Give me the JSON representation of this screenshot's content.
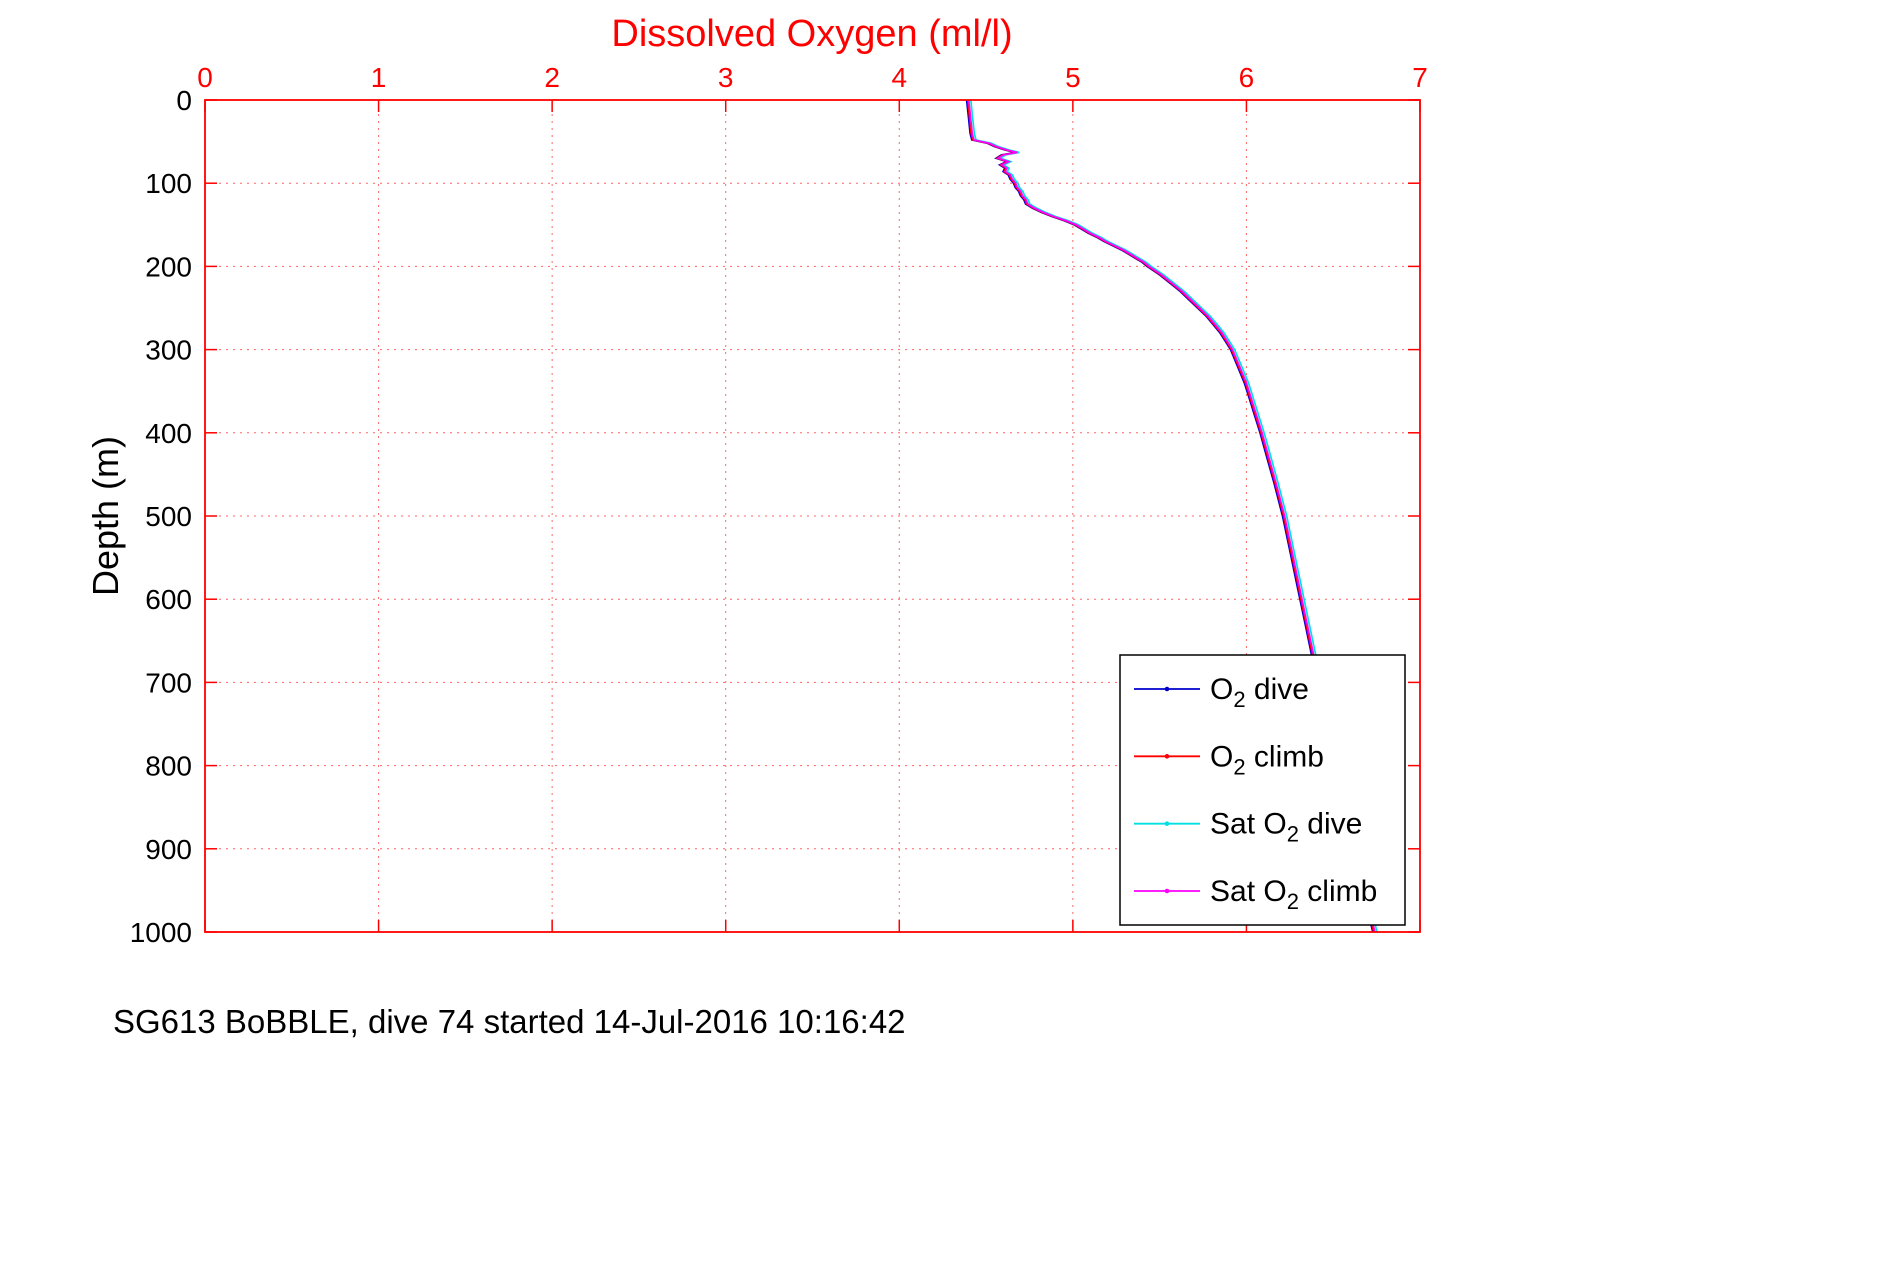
{
  "title": "Dissolved Oxygen (ml/l)",
  "ylabel": "Depth (m)",
  "caption": "SG613 BoBBLE, dive 74 started 14-Jul-2016 10:16:42",
  "colors": {
    "axis": "#ff0000",
    "grid": "#ff6666",
    "title": "#ff0000",
    "x_tick_label": "#ff0000",
    "y_tick_label": "#000000",
    "caption": "#000000",
    "legend_border": "#000000",
    "legend_background": "#ffffff"
  },
  "chart_data": {
    "type": "line",
    "title": "Dissolved Oxygen (ml/l)",
    "xlabel": "Dissolved Oxygen (ml/l)",
    "ylabel": "Depth (m)",
    "xlim": [
      0,
      7
    ],
    "ylim": [
      0,
      1000
    ],
    "x_ticks": [
      0,
      1,
      2,
      3,
      4,
      5,
      6,
      7
    ],
    "y_ticks": [
      0,
      100,
      200,
      300,
      400,
      500,
      600,
      700,
      800,
      900,
      1000
    ],
    "y_axis_inverted": true,
    "x_axis_location": "top",
    "grid": "dotted",
    "depth_m": [
      0,
      20,
      40,
      48,
      52,
      56,
      60,
      63,
      66,
      70,
      74,
      78,
      82,
      86,
      90,
      95,
      100,
      105,
      110,
      115,
      120,
      125,
      130,
      135,
      140,
      145,
      150,
      155,
      160,
      165,
      170,
      175,
      180,
      185,
      190,
      195,
      200,
      210,
      220,
      230,
      240,
      250,
      260,
      270,
      280,
      290,
      300,
      320,
      340,
      360,
      380,
      400,
      430,
      460,
      500,
      540,
      580,
      620,
      660,
      700,
      750,
      800,
      850,
      900,
      950,
      1000
    ],
    "series": [
      {
        "name": "O2 dive",
        "color": "#0000cd",
        "oxygen_ml_l": [
          4.388,
          4.398,
          4.408,
          4.418,
          4.508,
          4.548,
          4.608,
          4.668,
          4.588,
          4.558,
          4.618,
          4.578,
          4.608,
          4.598,
          4.628,
          4.638,
          4.658,
          4.668,
          4.688,
          4.698,
          4.718,
          4.728,
          4.768,
          4.818,
          4.878,
          4.948,
          5.008,
          5.048,
          5.088,
          5.138,
          5.178,
          5.228,
          5.278,
          5.318,
          5.358,
          5.398,
          5.428,
          5.498,
          5.558,
          5.618,
          5.668,
          5.718,
          5.768,
          5.808,
          5.848,
          5.878,
          5.908,
          5.948,
          5.988,
          6.018,
          6.048,
          6.078,
          6.118,
          6.158,
          6.208,
          6.248,
          6.288,
          6.328,
          6.368,
          6.408,
          6.458,
          6.508,
          6.558,
          6.608,
          6.668,
          6.728
        ]
      },
      {
        "name": "O2 climb",
        "color": "#ff0000",
        "oxygen_ml_l": [
          4.394,
          4.404,
          4.414,
          4.424,
          4.514,
          4.554,
          4.614,
          4.674,
          4.594,
          4.564,
          4.624,
          4.584,
          4.614,
          4.604,
          4.634,
          4.644,
          4.664,
          4.674,
          4.694,
          4.704,
          4.724,
          4.734,
          4.774,
          4.824,
          4.884,
          4.954,
          5.014,
          5.054,
          5.094,
          5.144,
          5.184,
          5.234,
          5.284,
          5.324,
          5.364,
          5.404,
          5.434,
          5.504,
          5.564,
          5.624,
          5.674,
          5.724,
          5.774,
          5.814,
          5.854,
          5.884,
          5.914,
          5.954,
          5.994,
          6.024,
          6.054,
          6.084,
          6.124,
          6.164,
          6.214,
          6.254,
          6.294,
          6.334,
          6.374,
          6.414,
          6.464,
          6.514,
          6.564,
          6.614,
          6.674,
          6.734
        ]
      },
      {
        "name": "Sat O2 dive",
        "color": "#00e0e0",
        "oxygen_ml_l": [
          4.412,
          4.422,
          4.432,
          4.442,
          4.532,
          4.572,
          4.632,
          4.692,
          4.612,
          4.582,
          4.642,
          4.602,
          4.632,
          4.622,
          4.652,
          4.662,
          4.682,
          4.692,
          4.712,
          4.722,
          4.742,
          4.752,
          4.792,
          4.842,
          4.902,
          4.972,
          5.032,
          5.072,
          5.112,
          5.162,
          5.202,
          5.252,
          5.302,
          5.342,
          5.382,
          5.422,
          5.452,
          5.522,
          5.582,
          5.642,
          5.692,
          5.742,
          5.792,
          5.832,
          5.872,
          5.902,
          5.932,
          5.972,
          6.012,
          6.042,
          6.072,
          6.102,
          6.142,
          6.182,
          6.232,
          6.272,
          6.312,
          6.352,
          6.392,
          6.432,
          6.482,
          6.532,
          6.582,
          6.632,
          6.692,
          6.752
        ]
      },
      {
        "name": "Sat O2 climb",
        "color": "#ff00ff",
        "oxygen_ml_l": [
          4.4,
          4.41,
          4.42,
          4.43,
          4.52,
          4.56,
          4.62,
          4.68,
          4.6,
          4.57,
          4.63,
          4.59,
          4.62,
          4.61,
          4.64,
          4.65,
          4.67,
          4.68,
          4.7,
          4.71,
          4.73,
          4.74,
          4.78,
          4.83,
          4.89,
          4.96,
          5.02,
          5.06,
          5.1,
          5.15,
          5.19,
          5.24,
          5.29,
          5.33,
          5.37,
          5.41,
          5.44,
          5.51,
          5.57,
          5.63,
          5.68,
          5.73,
          5.78,
          5.82,
          5.86,
          5.89,
          5.92,
          5.96,
          6.0,
          6.03,
          6.06,
          6.09,
          6.13,
          6.17,
          6.22,
          6.26,
          6.3,
          6.34,
          6.38,
          6.42,
          6.47,
          6.52,
          6.57,
          6.62,
          6.68,
          6.74
        ]
      }
    ],
    "legend": {
      "position": "lower right",
      "entries": [
        {
          "pre": "O",
          "sub": "2",
          "post": " dive",
          "color": "#0000cd"
        },
        {
          "pre": "O",
          "sub": "2",
          "post": " climb",
          "color": "#ff0000"
        },
        {
          "pre": "Sat O",
          "sub": "2",
          "post": " dive",
          "color": "#00e0e0"
        },
        {
          "pre": "Sat O",
          "sub": "2",
          "post": " climb",
          "color": "#ff00ff"
        }
      ]
    }
  }
}
